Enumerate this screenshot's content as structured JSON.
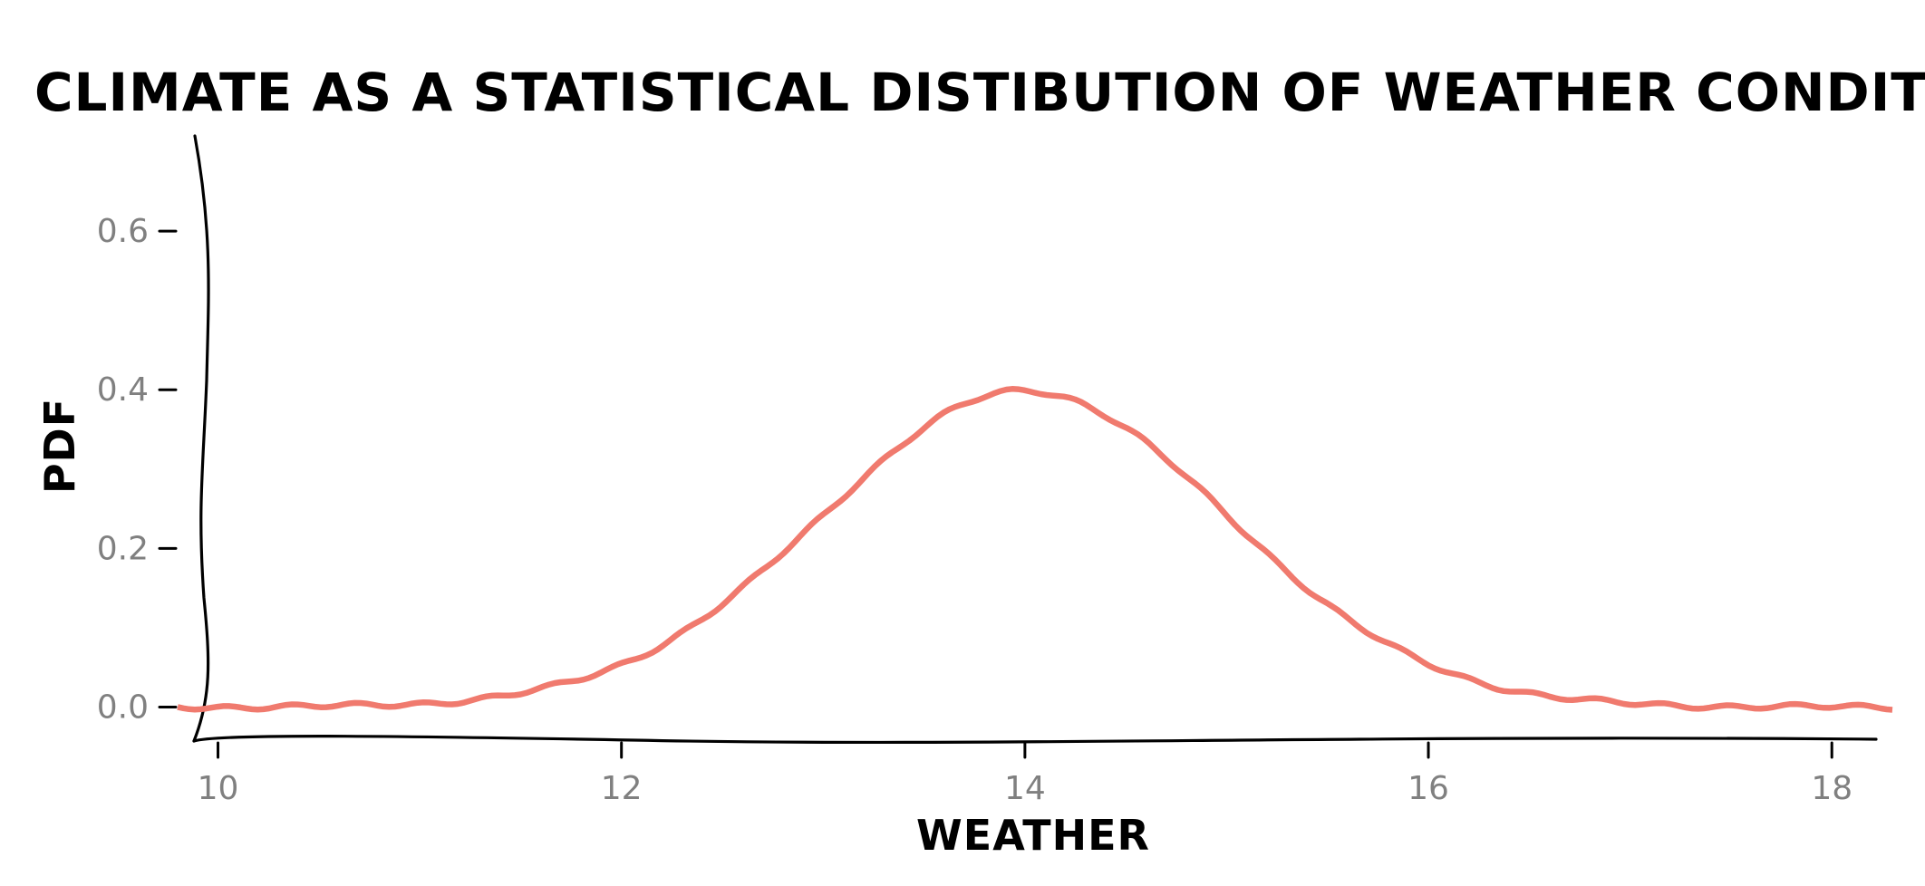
{
  "chart_data": {
    "type": "line",
    "title": "CLIMATE AS A STATISTICAL DISTIBUTION OF WEATHER CONDITIONS",
    "xlabel": "WEATHER",
    "ylabel": "PDF",
    "xlim": [
      9.8,
      18.3
    ],
    "ylim": [
      -0.02,
      0.72
    ],
    "xticks": [
      10,
      12,
      14,
      16,
      18
    ],
    "yticks": [
      0.0,
      0.2,
      0.4,
      0.6
    ],
    "xtick_labels": [
      "10",
      "12",
      "14",
      "16",
      "18"
    ],
    "ytick_labels": [
      "0.0",
      "0.2",
      "0.4",
      "0.6"
    ],
    "grid": false,
    "style": "xkcd",
    "series": [
      {
        "color": "#f07a6e",
        "distribution": "normal",
        "mean": 14,
        "std": 1,
        "x": [
          9.8,
          10.5,
          11.0,
          11.5,
          12.0,
          12.5,
          13.0,
          13.5,
          14.0,
          14.5,
          15.0,
          15.5,
          16.0,
          16.5,
          17.0,
          17.5,
          18.0,
          18.3
        ],
        "y": [
          0.0,
          0.0,
          0.004,
          0.018,
          0.054,
          0.13,
          0.242,
          0.352,
          0.399,
          0.352,
          0.242,
          0.13,
          0.054,
          0.018,
          0.004,
          0.001,
          0.0,
          0.0
        ]
      }
    ]
  }
}
